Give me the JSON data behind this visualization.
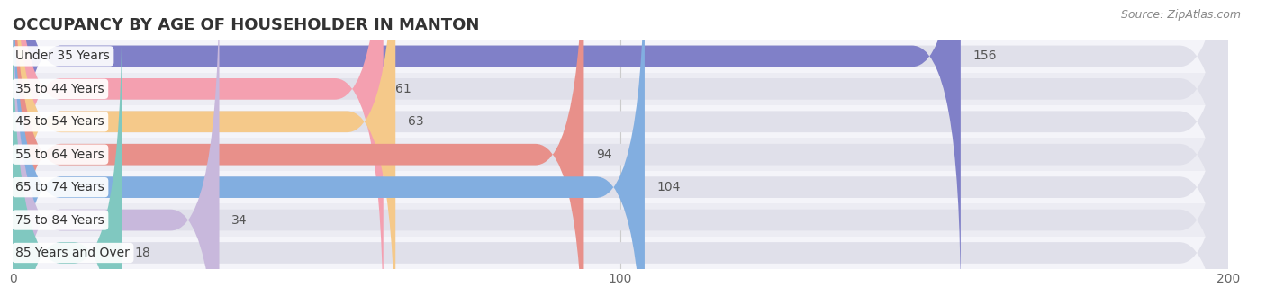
{
  "title": "OCCUPANCY BY AGE OF HOUSEHOLDER IN MANTON",
  "source": "Source: ZipAtlas.com",
  "categories": [
    "Under 35 Years",
    "35 to 44 Years",
    "45 to 54 Years",
    "55 to 64 Years",
    "65 to 74 Years",
    "75 to 84 Years",
    "85 Years and Over"
  ],
  "values": [
    156,
    61,
    63,
    94,
    104,
    34,
    18
  ],
  "bar_colors": [
    "#8080c8",
    "#f4a0b0",
    "#f5c98a",
    "#e8908a",
    "#82aee0",
    "#c8b8dc",
    "#80c8c0"
  ],
  "xlim": [
    0,
    200
  ],
  "xticks": [
    0,
    100,
    200
  ],
  "background_color": "#ffffff",
  "title_fontsize": 13,
  "label_fontsize": 10,
  "value_fontsize": 10,
  "source_fontsize": 9,
  "bar_height": 0.65
}
